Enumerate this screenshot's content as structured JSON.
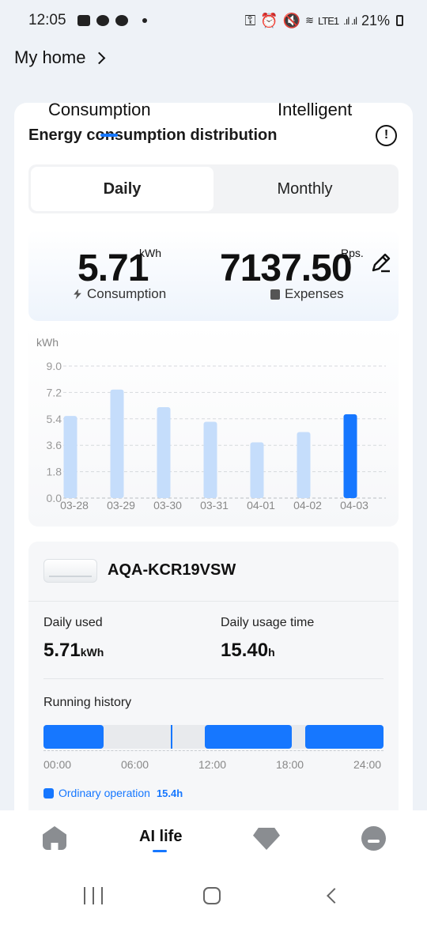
{
  "status_bar": {
    "time": "12:05",
    "battery": "21%",
    "network_label": "LTE1"
  },
  "header": {
    "title": "My home"
  },
  "tabs": [
    {
      "label": "Consumption"
    },
    {
      "label": "Intelligent"
    }
  ],
  "section": {
    "title": "Energy consumption distribution"
  },
  "segment": {
    "daily": "Daily",
    "monthly": "Monthly",
    "selected": "Daily"
  },
  "summary": {
    "consumption_value": "5.71",
    "consumption_unit": "kWh",
    "consumption_label": "Consumption",
    "expenses_value": "7137.50",
    "expenses_unit": "Rps.",
    "expenses_label": "Expenses"
  },
  "chart_data": {
    "type": "bar",
    "ylabel": "kWh",
    "ylim": [
      0,
      9.0
    ],
    "yticks": [
      0.0,
      1.8,
      3.6,
      5.4,
      7.2,
      9.0
    ],
    "categories": [
      "03-28",
      "03-29",
      "03-30",
      "03-31",
      "04-01",
      "04-02",
      "04-03"
    ],
    "values": [
      5.6,
      7.4,
      6.2,
      5.2,
      3.8,
      4.5,
      5.71
    ],
    "highlighted": "04-03",
    "bar_color": "#c5ddfb",
    "highlight_color": "#1677ff",
    "grid": true
  },
  "device": {
    "name": "AQA-KCR19VSW",
    "daily_used_label": "Daily used",
    "daily_used_value": "5.71",
    "daily_used_unit": "kWh",
    "usage_time_label": "Daily usage time",
    "usage_time_value": "15.40",
    "usage_time_unit": "h",
    "running_history_label": "Running history",
    "timeline_ticks": [
      "00:00",
      "06:00",
      "12:00",
      "18:00",
      "24:00"
    ],
    "legend_label": "Ordinary operation",
    "legend_value": "15.4h",
    "accent": "#1677ff"
  },
  "bottom_nav": {
    "home": "home-icon",
    "ai_life": "AI life",
    "store": "diamond-icon",
    "profile": "profile-icon"
  }
}
